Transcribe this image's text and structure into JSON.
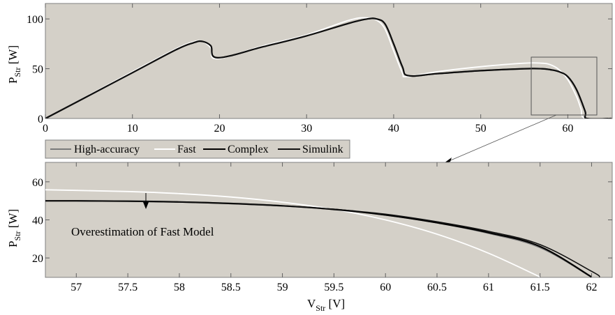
{
  "colors": {
    "plot_bg": "#d4d0c8",
    "axes": "#808080",
    "high_accuracy": "#7a7a7a",
    "fast": "#ffffff",
    "complex": "#000000",
    "simulink": "#111111",
    "zoom_box": "#555555"
  },
  "legend": {
    "items": [
      {
        "label": "High-accuracy",
        "color": "#7a7a7a"
      },
      {
        "label": "Fast",
        "color": "#ffffff"
      },
      {
        "label": "Complex",
        "color": "#000000"
      },
      {
        "label": "Simulink",
        "color": "#111111"
      }
    ]
  },
  "annotation": {
    "text": "Overestimation of Fast Model"
  },
  "labels": {
    "top_ylabel_main": "P",
    "top_ylabel_sub": "Str",
    "top_ylabel_unit": " [W]",
    "bottom_ylabel_main": "P",
    "bottom_ylabel_sub": "Str",
    "bottom_ylabel_unit": " [W]",
    "xlabel_main": "V",
    "xlabel_sub": "Str",
    "xlabel_unit": " [V]"
  },
  "chart_data": [
    {
      "type": "line",
      "title": "",
      "xlabel": "V_Str [V]",
      "ylabel": "P_Str [W]",
      "xlim": [
        0,
        65
      ],
      "ylim": [
        0,
        115
      ],
      "xticks": [
        0,
        10,
        20,
        30,
        40,
        50,
        60
      ],
      "yticks": [
        0,
        50,
        100
      ],
      "grid": false,
      "legend_position": "below plot, left",
      "series": [
        {
          "name": "High-accuracy",
          "x": [
            0,
            5,
            10,
            15,
            17,
            18,
            19,
            19.8,
            25,
            30,
            35,
            37,
            38,
            39,
            40,
            41,
            41.7,
            45,
            50,
            55,
            57,
            58,
            59,
            60,
            61,
            62,
            62.2,
            65
          ],
          "y": [
            0,
            23,
            46,
            69,
            76,
            77.5,
            73,
            61,
            72,
            83,
            96,
            100,
            100,
            95,
            75,
            52,
            43,
            45,
            48,
            50,
            50,
            49,
            47,
            42,
            29,
            7,
            0,
            0
          ]
        },
        {
          "name": "Fast",
          "x": [
            0,
            5,
            10,
            15,
            17,
            18,
            19,
            19.7,
            25,
            30,
            35,
            37,
            38,
            39,
            40,
            41,
            41.5,
            45,
            50,
            55,
            57,
            58,
            59,
            60,
            61,
            61.5,
            62,
            65
          ],
          "y": [
            0,
            23.5,
            47,
            70,
            77,
            77.5,
            71,
            60,
            73,
            84,
            99,
            101,
            99,
            90,
            68,
            46,
            42,
            47,
            52,
            55.5,
            55.5,
            54,
            49,
            39,
            22,
            10,
            0,
            0
          ]
        },
        {
          "name": "Complex",
          "x": [
            0,
            5,
            10,
            15,
            17,
            18,
            19,
            19.8,
            25,
            30,
            35,
            37,
            38,
            39,
            40,
            41,
            41.7,
            45,
            50,
            55,
            57,
            58,
            59,
            60,
            61,
            62,
            62.2,
            65
          ],
          "y": [
            0,
            23,
            46,
            69,
            76,
            77.5,
            73,
            61,
            72,
            83,
            96,
            100,
            100,
            95,
            75,
            52,
            43,
            45,
            48,
            50,
            50,
            49,
            47,
            42,
            29,
            7,
            0,
            0
          ]
        },
        {
          "name": "Simulink",
          "x": [
            0,
            5,
            10,
            15,
            17,
            18,
            19,
            19.8,
            25,
            30,
            35,
            37,
            38,
            39,
            40,
            41,
            41.7,
            45,
            50,
            55,
            57,
            58,
            59,
            60,
            61,
            62,
            62.2,
            65
          ],
          "y": [
            0,
            23,
            46,
            69,
            76,
            77.5,
            73,
            61,
            72,
            83,
            96,
            100,
            100,
            95,
            75,
            52,
            43,
            45,
            48,
            50,
            50,
            49,
            47,
            42,
            29,
            7,
            0,
            0
          ]
        }
      ],
      "annotations": [
        {
          "type": "zoom_box",
          "x_range": [
            56.7,
            62.2
          ],
          "y_range": [
            3,
            61
          ]
        },
        {
          "type": "arrow",
          "from": "zoom box",
          "to": "lower plot"
        }
      ]
    },
    {
      "type": "line",
      "title": "",
      "xlabel": "V_Str [V]",
      "ylabel": "P_Str [W]",
      "xlim": [
        56.7,
        62.2
      ],
      "ylim": [
        10,
        70
      ],
      "xticks": [
        57,
        57.5,
        58,
        58.5,
        59,
        59.5,
        60,
        60.5,
        61,
        61.5,
        62
      ],
      "yticks": [
        20,
        40,
        60
      ],
      "grid": false,
      "series": [
        {
          "name": "High-accuracy",
          "x": [
            56.7,
            57,
            57.5,
            58,
            58.5,
            59,
            59.5,
            60,
            60.5,
            61,
            61.5,
            62
          ],
          "y": [
            50,
            50,
            49.8,
            49.4,
            48.6,
            47.4,
            45.5,
            42.6,
            38.5,
            33,
            25.5,
            10
          ]
        },
        {
          "name": "Fast",
          "x": [
            56.7,
            57,
            57.5,
            58,
            58.5,
            59,
            59.5,
            60,
            60.5,
            61,
            61.5
          ],
          "y": [
            55.8,
            55.5,
            54.9,
            53.8,
            52,
            49.3,
            45.5,
            40,
            32.5,
            22.5,
            10
          ]
        },
        {
          "name": "Complex",
          "x": [
            56.7,
            57,
            57.5,
            58,
            58.5,
            59,
            59.5,
            60,
            60.5,
            61,
            61.5,
            62
          ],
          "y": [
            50,
            50,
            49.8,
            49.4,
            48.6,
            47.4,
            45.5,
            42.6,
            38.5,
            33.3,
            26,
            10
          ]
        },
        {
          "name": "Simulink",
          "x": [
            56.7,
            57,
            57.5,
            58,
            58.5,
            59,
            59.5,
            60,
            60.5,
            61,
            61.5,
            62,
            62.08
          ],
          "y": [
            50,
            50,
            49.8,
            49.4,
            48.6,
            47.4,
            45.6,
            43,
            39,
            34,
            27,
            13,
            10
          ]
        }
      ],
      "annotations": [
        {
          "type": "arrow",
          "text": "Overestimation of Fast Model",
          "x": 57.68,
          "from_y": 54.5,
          "to_y": 42
        }
      ]
    }
  ]
}
